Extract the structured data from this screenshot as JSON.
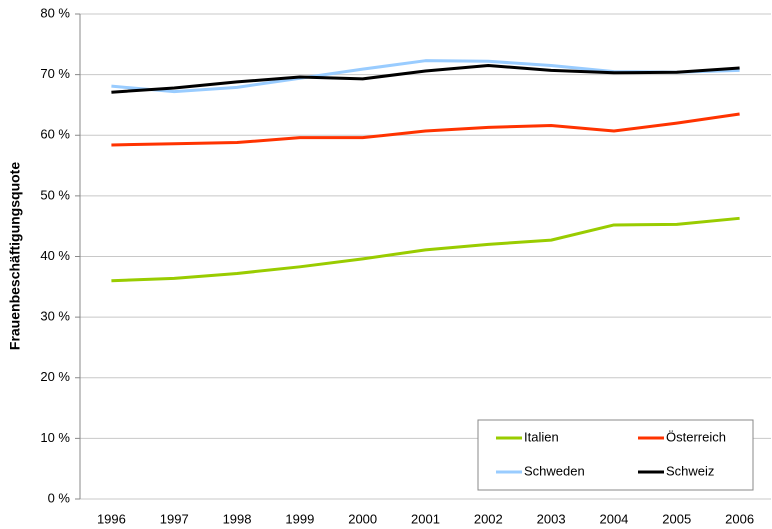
{
  "chart_data": {
    "type": "line",
    "y_label": "Frauenbeschäftigungsquote",
    "categories": [
      "1996",
      "1997",
      "1998",
      "1999",
      "2000",
      "2001",
      "2002",
      "2003",
      "2004",
      "2005",
      "2006"
    ],
    "series": [
      {
        "name": "Italien",
        "color": "#99cc00",
        "values": [
          36.0,
          36.4,
          37.2,
          38.3,
          39.6,
          41.1,
          42.0,
          42.7,
          45.2,
          45.3,
          46.3
        ]
      },
      {
        "name": "Österreich",
        "color": "#ff3300",
        "values": [
          58.4,
          58.6,
          58.8,
          59.6,
          59.6,
          60.7,
          61.3,
          61.6,
          60.7,
          62.0,
          63.5
        ]
      },
      {
        "name": "Schweden",
        "color": "#99ccff",
        "values": [
          68.1,
          67.2,
          67.9,
          69.4,
          70.9,
          72.3,
          72.2,
          71.5,
          70.5,
          70.4,
          70.7
        ]
      },
      {
        "name": "Schweiz",
        "color": "#000000",
        "values": [
          67.1,
          67.8,
          68.8,
          69.6,
          69.3,
          70.6,
          71.5,
          70.7,
          70.3,
          70.4,
          71.1
        ]
      }
    ],
    "ylim": [
      0,
      80
    ],
    "yticks": [
      {
        "value": 0,
        "label": "0 %"
      },
      {
        "value": 10,
        "label": "10 %"
      },
      {
        "value": 20,
        "label": "20 %"
      },
      {
        "value": 30,
        "label": "30 %"
      },
      {
        "value": 40,
        "label": "40 %"
      },
      {
        "value": 50,
        "label": "50 %"
      },
      {
        "value": 60,
        "label": "60 %"
      },
      {
        "value": 70,
        "label": "70 %"
      },
      {
        "value": 80,
        "label": "80 %"
      }
    ],
    "grid": true,
    "legend": "lower right"
  }
}
